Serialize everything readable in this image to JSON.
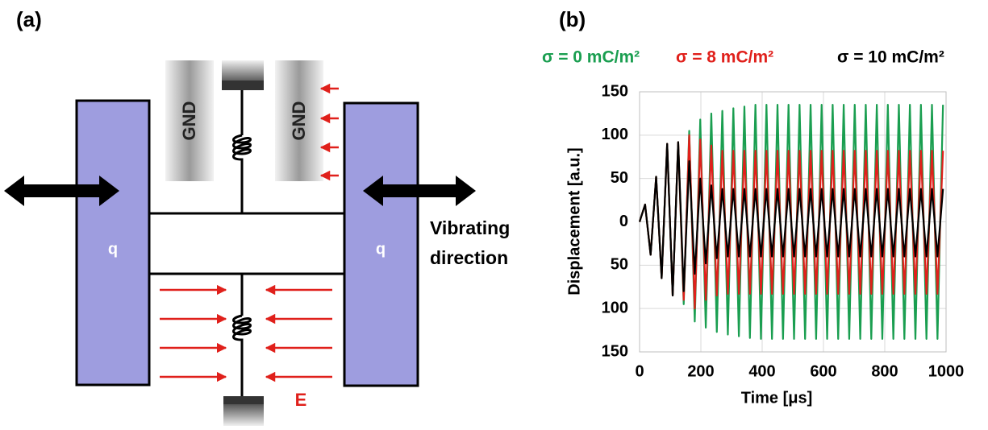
{
  "panel_a": {
    "label": "(a)",
    "gnd_labels": [
      "GND",
      "GND"
    ],
    "mass_labels": [
      "q",
      "q"
    ],
    "annotation": [
      "Vibrating",
      "direction"
    ],
    "field_label": "E"
  },
  "chart_data": {
    "type": "line",
    "label": "(b)",
    "x_label": "Time [μs]",
    "y_label": "Displacement [a.u.]",
    "xlim": [
      0,
      1000
    ],
    "xticks": [
      0,
      200,
      400,
      600,
      800,
      1000
    ],
    "ylim": [
      -150,
      150
    ],
    "yticks": [
      150,
      100,
      50,
      0,
      {
        "value": -50,
        "label": "50"
      },
      {
        "value": -100,
        "label": "100"
      },
      {
        "value": -150,
        "label": "150"
      }
    ],
    "grid": true,
    "x": [
      0,
      18,
      36,
      54,
      72,
      90,
      108,
      126,
      144,
      162,
      180,
      198,
      216,
      234,
      252,
      270,
      288,
      306,
      324,
      342,
      360,
      378,
      396,
      414,
      432,
      450,
      468,
      486,
      504,
      522,
      540,
      558,
      576,
      594,
      612,
      630,
      648,
      666,
      684,
      702,
      720,
      738,
      756,
      774,
      792,
      810,
      828,
      846,
      864,
      882,
      900,
      918,
      936,
      954,
      972,
      990
    ],
    "series": [
      {
        "name": "σ = 0 mC/m²",
        "color": "#1a9e50",
        "values": [
          0,
          20,
          -38,
          52,
          -65,
          90,
          -85,
          92,
          -95,
          105,
          -115,
          118,
          -122,
          125,
          -127,
          128,
          -130,
          131,
          -132,
          133,
          -134,
          135,
          -135,
          135,
          -135,
          135,
          -135,
          135,
          -135,
          135,
          -135,
          135,
          -135,
          135,
          -135,
          135,
          -135,
          135,
          -135,
          135,
          -135,
          135,
          -135,
          135,
          -135,
          135,
          -135,
          135,
          -135,
          135,
          -135,
          135,
          -135,
          135,
          -135,
          135
        ]
      },
      {
        "name": "σ = 8 mC/m²",
        "color": "#e0201b",
        "values": [
          0,
          20,
          -38,
          52,
          -65,
          90,
          -85,
          92,
          -90,
          100,
          -100,
          95,
          -90,
          88,
          -85,
          82,
          -83,
          82,
          -83,
          82,
          -83,
          82,
          -83,
          82,
          -83,
          82,
          -83,
          82,
          -83,
          82,
          -83,
          82,
          -83,
          82,
          -83,
          82,
          -83,
          82,
          -83,
          82,
          -83,
          82,
          -83,
          82,
          -83,
          82,
          -83,
          82,
          -83,
          82,
          -83,
          82,
          -83,
          82,
          -83,
          82
        ]
      },
      {
        "name": "σ = 10 mC/m²",
        "color": "#000000",
        "values": [
          0,
          20,
          -38,
          52,
          -65,
          90,
          -85,
          92,
          -80,
          70,
          -60,
          50,
          -48,
          42,
          -42,
          38,
          -40,
          38,
          -40,
          38,
          -40,
          38,
          -40,
          38,
          -40,
          38,
          -40,
          38,
          -40,
          38,
          -40,
          38,
          -40,
          38,
          -40,
          38,
          -40,
          38,
          -40,
          38,
          -40,
          38,
          -40,
          38,
          -40,
          38,
          -40,
          38,
          -40,
          38,
          -40,
          38,
          -40,
          38,
          -40,
          38
        ]
      }
    ]
  }
}
